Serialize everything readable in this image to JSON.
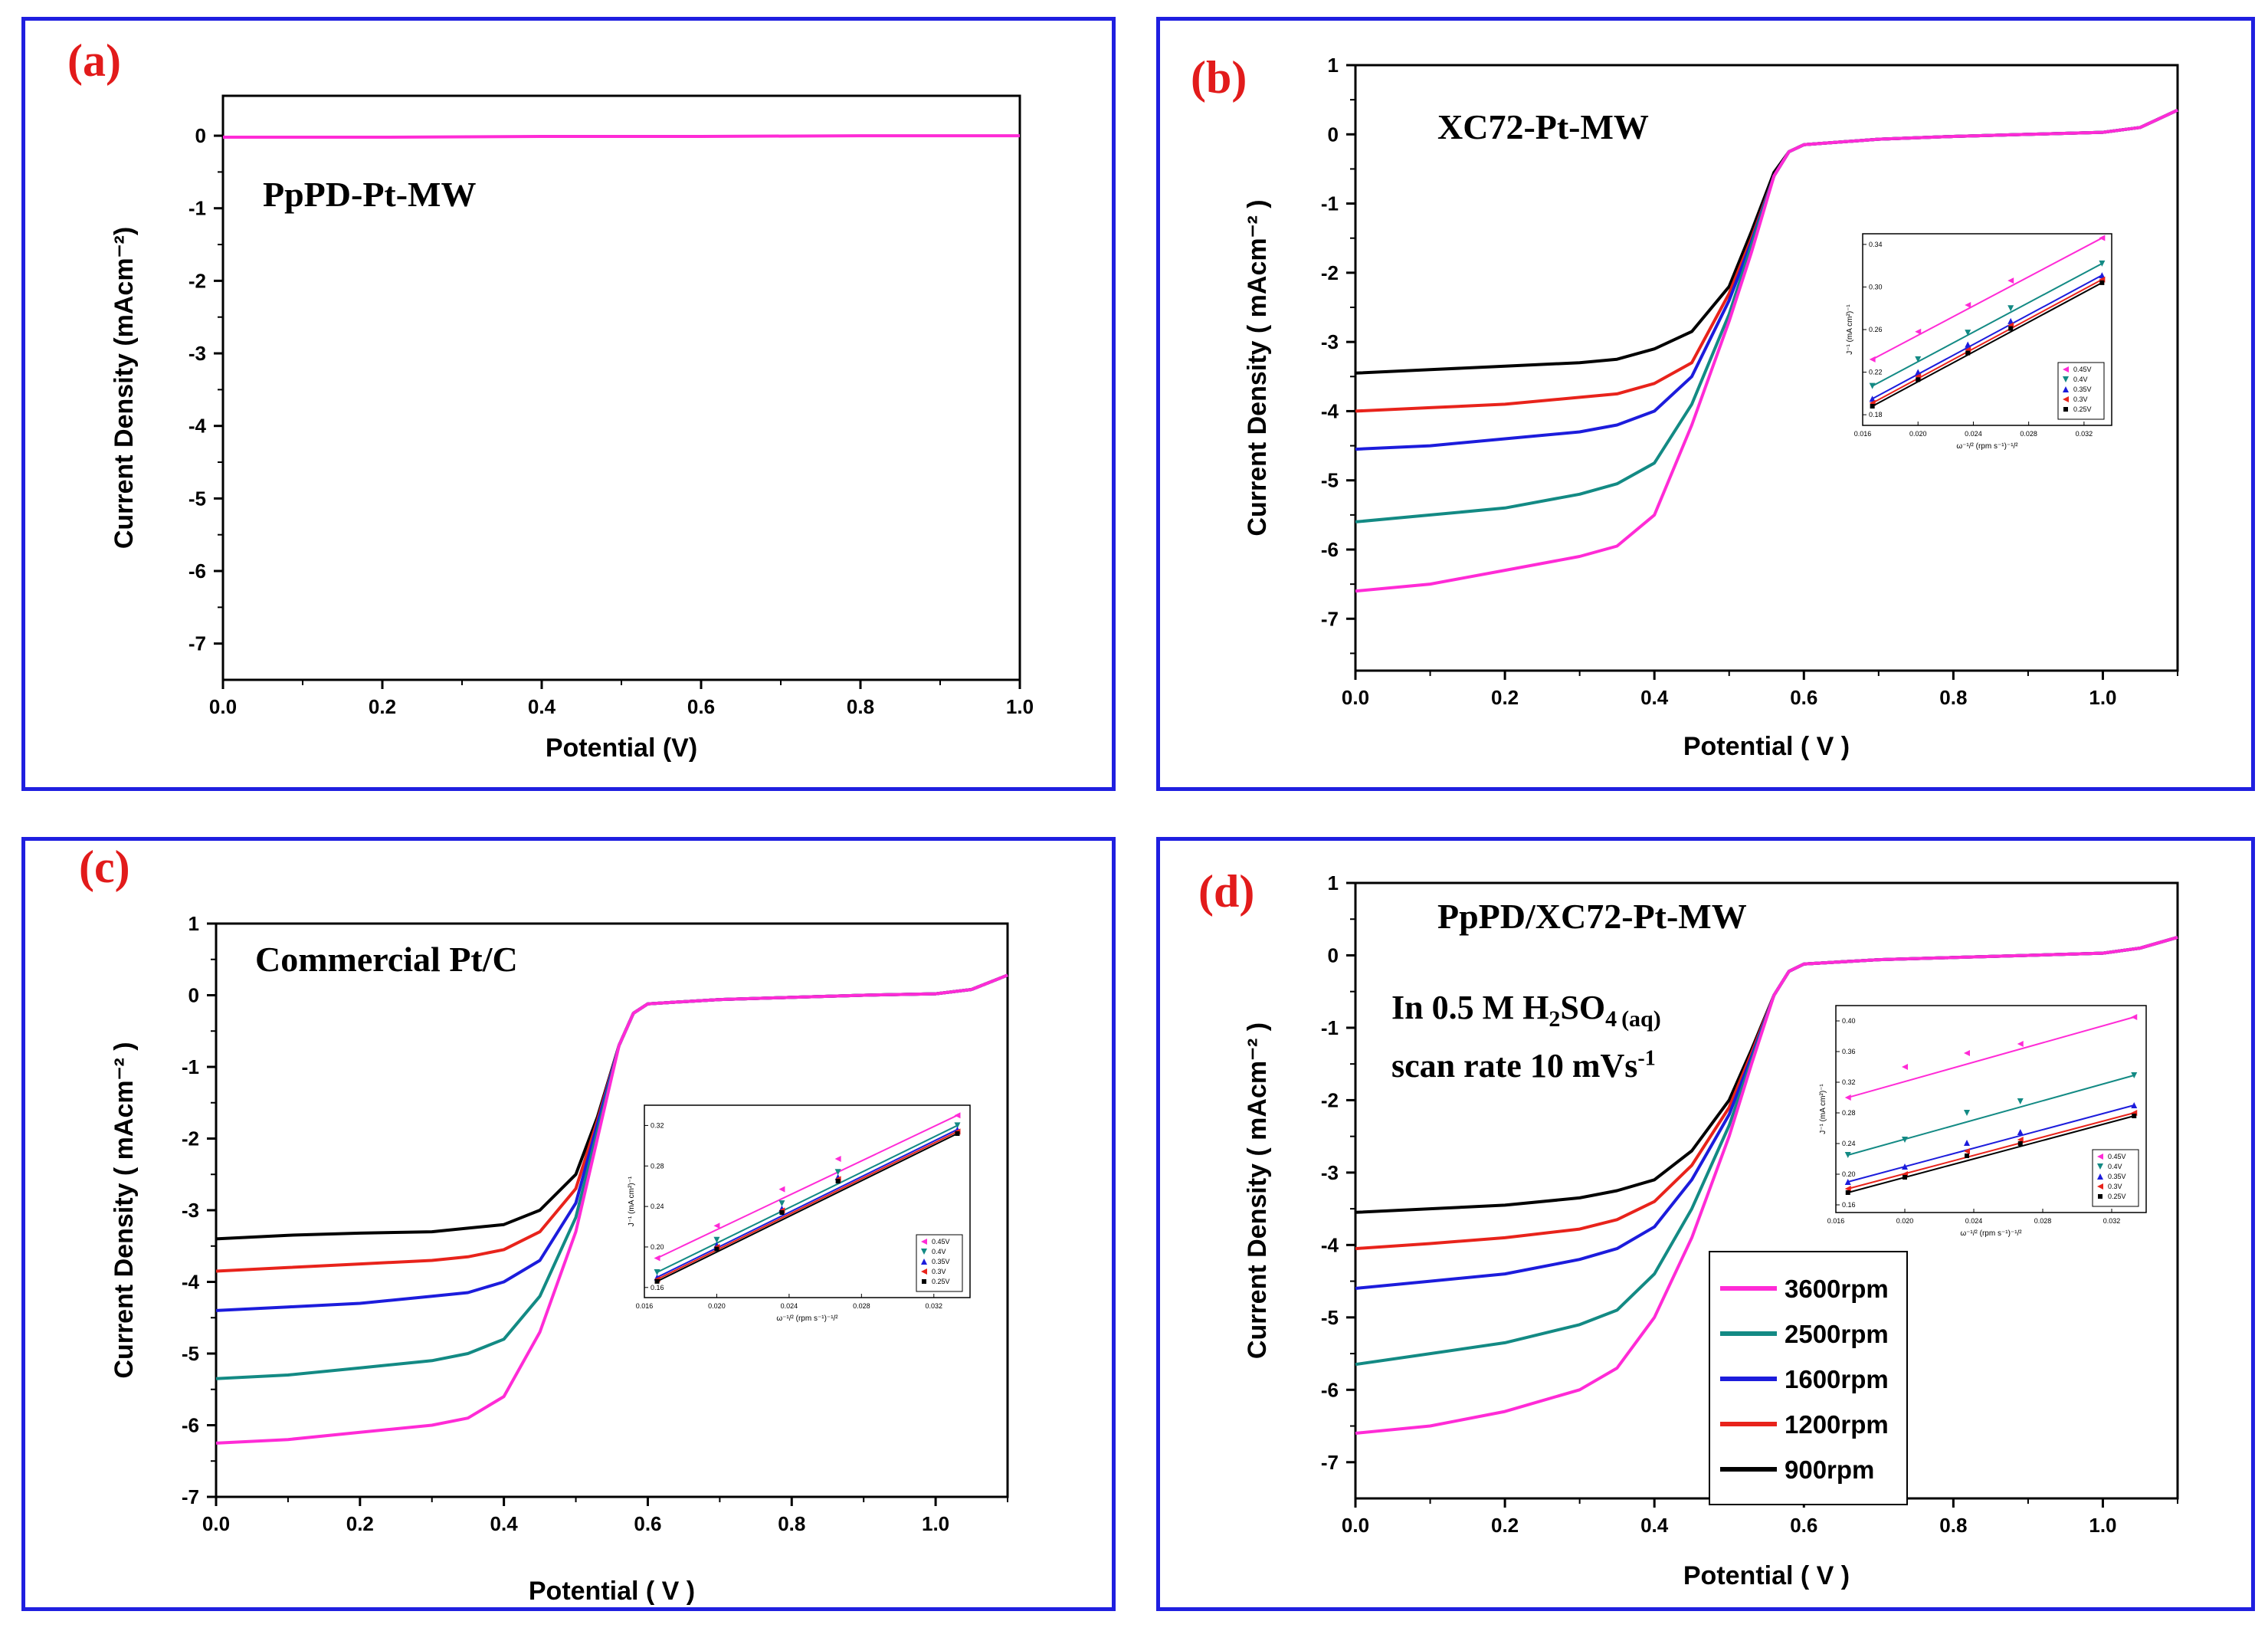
{
  "colors": {
    "border": "#1f1fe0",
    "label": "#e21b1b",
    "s3600": "#ff2bd6",
    "s2500": "#138a84",
    "s1600": "#1c1cdc",
    "s1200": "#e8231b",
    "s900": "#000000"
  },
  "legend": {
    "entries": [
      "3600rpm",
      "2500rpm",
      "1600rpm",
      "1200rpm",
      "900rpm"
    ]
  },
  "chart_data": [
    {
      "type": "line",
      "panel_label": "(a)",
      "title": "PpPD-Pt-MW",
      "xlabel": "Potential (V)",
      "ylabel": "Current Density (mAcm⁻²)",
      "xlim": [
        0.0,
        1.0
      ],
      "ylim": [
        -7.5,
        0.55
      ],
      "xticks": [
        "0.0",
        "0.2",
        "0.4",
        "0.6",
        "0.8",
        "1.0"
      ],
      "yticks": [
        "0",
        "-1",
        "-2",
        "-3",
        "-4",
        "-5",
        "-6",
        "-7"
      ],
      "series": [
        {
          "name": "3600rpm",
          "x": [
            0.0,
            0.2,
            0.4,
            0.6,
            0.8,
            1.0
          ],
          "y": [
            -0.02,
            -0.02,
            -0.01,
            -0.01,
            0.0,
            0.0
          ]
        }
      ]
    },
    {
      "type": "line",
      "panel_label": "(b)",
      "title": "XC72-Pt-MW",
      "xlabel": "Potential ( V )",
      "ylabel": "Current Density ( mAcm⁻² )",
      "xlim": [
        0.0,
        1.1
      ],
      "ylim": [
        -7.75,
        1.0
      ],
      "xticks": [
        "0.0",
        "0.2",
        "0.4",
        "0.6",
        "0.8",
        "1.0"
      ],
      "yticks": [
        "1",
        "0",
        "-1",
        "-2",
        "-3",
        "-4",
        "-5",
        "-6",
        "-7"
      ],
      "series": [
        {
          "name": "3600rpm",
          "x": [
            0.0,
            0.1,
            0.2,
            0.3,
            0.35,
            0.4,
            0.45,
            0.5,
            0.53,
            0.56,
            0.58,
            0.6,
            0.7,
            0.8,
            0.9,
            1.0,
            1.05,
            1.1
          ],
          "y": [
            -6.6,
            -6.5,
            -6.3,
            -6.1,
            -5.95,
            -5.5,
            -4.2,
            -2.7,
            -1.7,
            -0.6,
            -0.25,
            -0.15,
            -0.07,
            -0.03,
            0.0,
            0.03,
            0.1,
            0.35
          ]
        },
        {
          "name": "2500rpm",
          "x": [
            0.0,
            0.1,
            0.2,
            0.3,
            0.35,
            0.4,
            0.45,
            0.5,
            0.53,
            0.56,
            0.58,
            0.6,
            0.7,
            0.8,
            0.9,
            1.0,
            1.05,
            1.1
          ],
          "y": [
            -5.6,
            -5.5,
            -5.4,
            -5.2,
            -5.05,
            -4.75,
            -3.9,
            -2.6,
            -1.6,
            -0.6,
            -0.25,
            -0.15,
            -0.07,
            -0.03,
            0.0,
            0.03,
            0.1,
            0.35
          ]
        },
        {
          "name": "1600rpm",
          "x": [
            0.0,
            0.1,
            0.2,
            0.3,
            0.35,
            0.4,
            0.45,
            0.5,
            0.53,
            0.56,
            0.58,
            0.6,
            0.7,
            0.8,
            0.9,
            1.0,
            1.05,
            1.1
          ],
          "y": [
            -4.55,
            -4.5,
            -4.4,
            -4.3,
            -4.2,
            -4.0,
            -3.5,
            -2.4,
            -1.55,
            -0.6,
            -0.25,
            -0.15,
            -0.07,
            -0.03,
            0.0,
            0.03,
            0.1,
            0.35
          ]
        },
        {
          "name": "1200rpm",
          "x": [
            0.0,
            0.1,
            0.2,
            0.3,
            0.35,
            0.4,
            0.45,
            0.5,
            0.53,
            0.56,
            0.58,
            0.6,
            0.7,
            0.8,
            0.9,
            1.0,
            1.05,
            1.1
          ],
          "y": [
            -4.0,
            -3.95,
            -3.9,
            -3.8,
            -3.75,
            -3.6,
            -3.3,
            -2.3,
            -1.5,
            -0.6,
            -0.25,
            -0.15,
            -0.07,
            -0.03,
            0.0,
            0.03,
            0.1,
            0.35
          ]
        },
        {
          "name": "900rpm",
          "x": [
            0.0,
            0.1,
            0.2,
            0.3,
            0.35,
            0.4,
            0.45,
            0.5,
            0.53,
            0.56,
            0.58,
            0.6,
            0.7,
            0.8,
            0.9,
            1.0,
            1.05,
            1.1
          ],
          "y": [
            -3.45,
            -3.4,
            -3.35,
            -3.3,
            -3.25,
            -3.1,
            -2.85,
            -2.2,
            -1.4,
            -0.55,
            -0.25,
            -0.15,
            -0.07,
            -0.03,
            0.0,
            0.03,
            0.1,
            0.35
          ]
        }
      ],
      "inset": {
        "ylabel": "J⁻¹ (mA cm²)⁻¹",
        "xlabel": "ω⁻¹/² (rpm s⁻¹)⁻¹/²",
        "xlim": [
          0.016,
          0.034
        ],
        "ylim": [
          0.17,
          0.35
        ],
        "xticks": [
          "0.016",
          "0.020",
          "0.024",
          "0.028",
          "0.032"
        ],
        "yticks": [
          "0.18",
          "0.22",
          "0.26",
          "0.30",
          "0.34"
        ],
        "legend": [
          "0.45V",
          "0.4V",
          "0.35V",
          "0.3V",
          "0.25V"
        ],
        "x": [
          0.0167,
          0.02,
          0.0236,
          0.0267,
          0.0333
        ],
        "series": [
          {
            "name": "0.45V",
            "y": [
              0.232,
              0.258,
              0.283,
              0.306,
              0.346
            ]
          },
          {
            "name": "0.4V",
            "y": [
              0.207,
              0.232,
              0.257,
              0.28,
              0.322
            ]
          },
          {
            "name": "0.35V",
            "y": [
              0.195,
              0.22,
              0.246,
              0.268,
              0.311
            ]
          },
          {
            "name": "0.3V",
            "y": [
              0.191,
              0.216,
              0.241,
              0.264,
              0.307
            ]
          },
          {
            "name": "0.25V",
            "y": [
              0.188,
              0.213,
              0.238,
              0.261,
              0.304
            ]
          }
        ]
      }
    },
    {
      "type": "line",
      "panel_label": "(c)",
      "title": "Commercial Pt/C",
      "xlabel": "Potential ( V )",
      "ylabel": "Current Density ( mAcm⁻² )",
      "xlim": [
        0.0,
        1.1
      ],
      "ylim": [
        -7.0,
        1.0
      ],
      "xticks": [
        "0.0",
        "0.2",
        "0.4",
        "0.6",
        "0.8",
        "1.0"
      ],
      "yticks": [
        "1",
        "0",
        "-1",
        "-2",
        "-3",
        "-4",
        "-5",
        "-6",
        "-7"
      ],
      "series": [
        {
          "name": "3600rpm",
          "x": [
            0.0,
            0.1,
            0.2,
            0.3,
            0.35,
            0.4,
            0.45,
            0.5,
            0.53,
            0.56,
            0.58,
            0.6,
            0.7,
            0.8,
            0.9,
            1.0,
            1.05,
            1.1
          ],
          "y": [
            -6.25,
            -6.2,
            -6.1,
            -6.0,
            -5.9,
            -5.6,
            -4.7,
            -3.3,
            -2.0,
            -0.7,
            -0.25,
            -0.12,
            -0.06,
            -0.03,
            0.0,
            0.02,
            0.08,
            0.28
          ]
        },
        {
          "name": "2500rpm",
          "x": [
            0.0,
            0.1,
            0.2,
            0.3,
            0.35,
            0.4,
            0.45,
            0.5,
            0.53,
            0.56,
            0.58,
            0.6,
            0.7,
            0.8,
            0.9,
            1.0,
            1.05,
            1.1
          ],
          "y": [
            -5.35,
            -5.3,
            -5.2,
            -5.1,
            -5.0,
            -4.8,
            -4.2,
            -3.1,
            -1.9,
            -0.7,
            -0.25,
            -0.12,
            -0.06,
            -0.03,
            0.0,
            0.02,
            0.08,
            0.28
          ]
        },
        {
          "name": "1600rpm",
          "x": [
            0.0,
            0.1,
            0.2,
            0.3,
            0.35,
            0.4,
            0.45,
            0.5,
            0.53,
            0.56,
            0.58,
            0.6,
            0.7,
            0.8,
            0.9,
            1.0,
            1.05,
            1.1
          ],
          "y": [
            -4.4,
            -4.35,
            -4.3,
            -4.2,
            -4.15,
            -4.0,
            -3.7,
            -2.9,
            -1.8,
            -0.7,
            -0.25,
            -0.12,
            -0.06,
            -0.03,
            0.0,
            0.02,
            0.08,
            0.28
          ]
        },
        {
          "name": "1200rpm",
          "x": [
            0.0,
            0.1,
            0.2,
            0.3,
            0.35,
            0.4,
            0.45,
            0.5,
            0.53,
            0.56,
            0.58,
            0.6,
            0.7,
            0.8,
            0.9,
            1.0,
            1.05,
            1.1
          ],
          "y": [
            -3.85,
            -3.8,
            -3.75,
            -3.7,
            -3.65,
            -3.55,
            -3.3,
            -2.7,
            -1.75,
            -0.7,
            -0.25,
            -0.12,
            -0.06,
            -0.03,
            0.0,
            0.02,
            0.08,
            0.28
          ]
        },
        {
          "name": "900rpm",
          "x": [
            0.0,
            0.1,
            0.2,
            0.3,
            0.35,
            0.4,
            0.45,
            0.5,
            0.53,
            0.56,
            0.58,
            0.6,
            0.7,
            0.8,
            0.9,
            1.0,
            1.05,
            1.1
          ],
          "y": [
            -3.4,
            -3.35,
            -3.32,
            -3.3,
            -3.25,
            -3.2,
            -3.0,
            -2.5,
            -1.7,
            -0.7,
            -0.25,
            -0.12,
            -0.06,
            -0.03,
            0.0,
            0.02,
            0.08,
            0.28
          ]
        }
      ],
      "inset": {
        "ylabel": "J⁻¹ (mA cm²)⁻¹",
        "xlabel": "ω⁻¹/² (rpm s⁻¹)⁻¹/²",
        "xlim": [
          0.016,
          0.034
        ],
        "ylim": [
          0.15,
          0.34
        ],
        "xticks": [
          "0.016",
          "0.020",
          "0.024",
          "0.028",
          "0.032"
        ],
        "yticks": [
          "0.16",
          "0.20",
          "0.24",
          "0.28",
          "0.32"
        ],
        "legend": [
          "0.45V",
          "0.4V",
          "0.35V",
          "0.3V",
          "0.25V"
        ],
        "x": [
          0.0167,
          0.02,
          0.0236,
          0.0267,
          0.0333
        ],
        "series": [
          {
            "name": "0.45V",
            "y": [
              0.189,
              0.221,
              0.257,
              0.287,
              0.33
            ]
          },
          {
            "name": "0.4V",
            "y": [
              0.175,
              0.207,
              0.243,
              0.274,
              0.32
            ]
          },
          {
            "name": "0.35V",
            "y": [
              0.17,
              0.202,
              0.238,
              0.269,
              0.316
            ]
          },
          {
            "name": "0.3V",
            "y": [
              0.168,
              0.2,
              0.236,
              0.267,
              0.314
            ]
          },
          {
            "name": "0.25V",
            "y": [
              0.166,
              0.198,
              0.234,
              0.265,
              0.312
            ]
          }
        ]
      }
    },
    {
      "type": "line",
      "panel_label": "(d)",
      "title": "PpPD/XC72-Pt-MW",
      "annotation_prefix": "In 0.5 M H",
      "annotation_sub2": "2",
      "annotation_mid": "SO",
      "annotation_sub4": "4",
      "annotation_aq": "(aq)",
      "scan_prefix": "scan rate 10 mVs",
      "scan_sup": "-1",
      "xlabel": "Potential ( V )",
      "ylabel": "Current Density ( mAcm⁻² )",
      "xlim": [
        0.0,
        1.1
      ],
      "ylim": [
        -7.5,
        1.0
      ],
      "xticks": [
        "0.0",
        "0.2",
        "0.4",
        "0.6",
        "0.8",
        "1.0"
      ],
      "yticks": [
        "1",
        "0",
        "-1",
        "-2",
        "-3",
        "-4",
        "-5",
        "-6",
        "-7"
      ],
      "series": [
        {
          "name": "3600rpm",
          "x": [
            0.0,
            0.1,
            0.2,
            0.3,
            0.35,
            0.4,
            0.45,
            0.5,
            0.53,
            0.56,
            0.58,
            0.6,
            0.7,
            0.8,
            0.9,
            1.0,
            1.05,
            1.1
          ],
          "y": [
            -6.6,
            -6.5,
            -6.3,
            -6.0,
            -5.7,
            -5.0,
            -3.9,
            -2.5,
            -1.5,
            -0.55,
            -0.22,
            -0.12,
            -0.06,
            -0.03,
            0.0,
            0.03,
            0.1,
            0.25
          ]
        },
        {
          "name": "2500rpm",
          "x": [
            0.0,
            0.1,
            0.2,
            0.3,
            0.35,
            0.4,
            0.45,
            0.5,
            0.53,
            0.56,
            0.58,
            0.6,
            0.7,
            0.8,
            0.9,
            1.0,
            1.05,
            1.1
          ],
          "y": [
            -5.65,
            -5.5,
            -5.35,
            -5.1,
            -4.9,
            -4.4,
            -3.5,
            -2.35,
            -1.45,
            -0.55,
            -0.22,
            -0.12,
            -0.06,
            -0.03,
            0.0,
            0.03,
            0.1,
            0.25
          ]
        },
        {
          "name": "1600rpm",
          "x": [
            0.0,
            0.1,
            0.2,
            0.3,
            0.35,
            0.4,
            0.45,
            0.5,
            0.53,
            0.56,
            0.58,
            0.6,
            0.7,
            0.8,
            0.9,
            1.0,
            1.05,
            1.1
          ],
          "y": [
            -4.6,
            -4.5,
            -4.4,
            -4.2,
            -4.05,
            -3.75,
            -3.1,
            -2.2,
            -1.4,
            -0.55,
            -0.22,
            -0.12,
            -0.06,
            -0.03,
            0.0,
            0.03,
            0.1,
            0.25
          ]
        },
        {
          "name": "1200rpm",
          "x": [
            0.0,
            0.1,
            0.2,
            0.3,
            0.35,
            0.4,
            0.45,
            0.5,
            0.53,
            0.56,
            0.58,
            0.6,
            0.7,
            0.8,
            0.9,
            1.0,
            1.05,
            1.1
          ],
          "y": [
            -4.05,
            -3.98,
            -3.9,
            -3.78,
            -3.65,
            -3.4,
            -2.9,
            -2.1,
            -1.35,
            -0.55,
            -0.22,
            -0.12,
            -0.06,
            -0.03,
            0.0,
            0.03,
            0.1,
            0.25
          ]
        },
        {
          "name": "900rpm",
          "x": [
            0.0,
            0.1,
            0.2,
            0.3,
            0.35,
            0.4,
            0.45,
            0.5,
            0.53,
            0.56,
            0.58,
            0.6,
            0.7,
            0.8,
            0.9,
            1.0,
            1.05,
            1.1
          ],
          "y": [
            -3.55,
            -3.5,
            -3.45,
            -3.35,
            -3.25,
            -3.1,
            -2.7,
            -2.0,
            -1.3,
            -0.55,
            -0.22,
            -0.12,
            -0.06,
            -0.03,
            0.0,
            0.03,
            0.1,
            0.25
          ]
        }
      ],
      "inset": {
        "ylabel": "J⁻¹ (mA cm²)⁻¹",
        "xlabel": "ω⁻¹/² (rpm s⁻¹)⁻¹/²",
        "xlim": [
          0.016,
          0.034
        ],
        "ylim": [
          0.15,
          0.42
        ],
        "xticks": [
          "0.016",
          "0.020",
          "0.024",
          "0.028",
          "0.032"
        ],
        "yticks": [
          "0.16",
          "0.20",
          "0.24",
          "0.28",
          "0.32",
          "0.36",
          "0.40"
        ],
        "legend": [
          "0.45V",
          "0.4V",
          "0.35V",
          "0.3V",
          "0.25V"
        ],
        "x": [
          0.0167,
          0.02,
          0.0236,
          0.0267,
          0.0333
        ],
        "series": [
          {
            "name": "0.45V",
            "y": [
              0.3,
              0.34,
              0.358,
              0.37,
              0.405
            ]
          },
          {
            "name": "0.4V",
            "y": [
              0.225,
              0.245,
              0.28,
              0.295,
              0.329
            ]
          },
          {
            "name": "0.35V",
            "y": [
              0.19,
              0.21,
              0.241,
              0.255,
              0.29
            ]
          },
          {
            "name": "0.3V",
            "y": [
              0.181,
              0.2,
              0.23,
              0.245,
              0.28
            ]
          },
          {
            "name": "0.25V",
            "y": [
              0.176,
              0.196,
              0.224,
              0.24,
              0.276
            ]
          }
        ]
      }
    }
  ]
}
